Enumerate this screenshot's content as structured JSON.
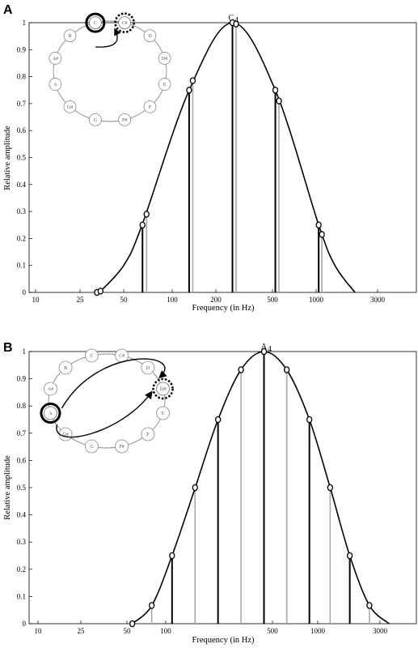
{
  "chart_data": [
    {
      "panel": "A",
      "type": "line",
      "peak_label": "C",
      "peak_label_sub": "4",
      "xlabel": "Frequency (in Hz)",
      "ylabel": "Relative amplitude",
      "x_scale": "log",
      "xlim": [
        8,
        5000
      ],
      "ylim": [
        0,
        1
      ],
      "x_ticks": [
        10,
        25,
        50,
        100,
        200,
        500,
        1000,
        3000
      ],
      "x_tick_labels": [
        "10",
        "25",
        "50",
        "100",
        "200",
        "500",
        "1000",
        "3000"
      ],
      "y_ticks": [
        0,
        0.1,
        0.2,
        0.3,
        0.4,
        0.5,
        0.6,
        0.7,
        0.8,
        0.9,
        1
      ],
      "y_tick_labels": [
        "0",
        "0.1",
        "0.2",
        "0.3",
        "0.4",
        "0.5",
        "0.6",
        "0.7",
        "0.8",
        "0.9",
        "1"
      ],
      "envelope_center_hz": 262,
      "envelope_points": [
        [
          34,
          0
        ],
        [
          50,
          0.1
        ],
        [
          65,
          0.25
        ],
        [
          131,
          0.75
        ],
        [
          262,
          1
        ],
        [
          523,
          0.75
        ],
        [
          1047,
          0.25
        ],
        [
          1400,
          0.1
        ],
        [
          2000,
          0
        ]
      ],
      "series": [
        {
          "name": "C",
          "color": "#000000",
          "x": [
            32.7,
            65.4,
            130.8,
            261.6,
            523.3,
            1046.5
          ],
          "y": [
            0,
            0.25,
            0.75,
            1,
            0.75,
            0.25
          ]
        },
        {
          "name": "C#",
          "color": "#aaaaaa",
          "x": [
            34.6,
            69.3,
            138.6,
            277.2,
            554.4,
            1108.7
          ],
          "y": [
            0.005,
            0.29,
            0.785,
            0.995,
            0.71,
            0.215
          ]
        }
      ],
      "circle": {
        "notes": [
          "C",
          "C#",
          "D",
          "D#",
          "E",
          "F",
          "F#",
          "G",
          "G#",
          "A",
          "A#",
          "B"
        ],
        "source_note": "C",
        "target_note": "C#"
      }
    },
    {
      "panel": "B",
      "type": "line",
      "peak_label": "A",
      "peak_label_sub": "4",
      "xlabel": "Frequency (in Hz)",
      "ylabel": "Relative amplitude",
      "x_scale": "log",
      "xlim": [
        8,
        5000
      ],
      "ylim": [
        0,
        1
      ],
      "x_ticks": [
        10,
        25,
        50,
        100,
        500,
        1000,
        3000
      ],
      "x_tick_labels": [
        "10",
        "25",
        "50",
        "100",
        "500",
        "1000",
        "3000"
      ],
      "y_ticks": [
        0,
        0.1,
        0.2,
        0.3,
        0.4,
        0.5,
        0.6,
        0.7,
        0.8,
        0.9,
        1
      ],
      "y_tick_labels": [
        "0",
        "0.1",
        "0.2",
        "0.3",
        "0.4",
        "0.5",
        "0.6",
        "0.7",
        "0.8",
        "0.9",
        "1"
      ],
      "envelope_center_hz": 440,
      "envelope_points": [
        [
          55,
          0
        ],
        [
          78,
          0.067
        ],
        [
          110,
          0.25
        ],
        [
          156,
          0.5
        ],
        [
          220,
          0.75
        ],
        [
          311,
          0.933
        ],
        [
          440,
          1
        ],
        [
          622,
          0.933
        ],
        [
          880,
          0.75
        ],
        [
          1245,
          0.5
        ],
        [
          1760,
          0.25
        ],
        [
          2490,
          0.067
        ],
        [
          3520,
          0
        ]
      ],
      "series": [
        {
          "name": "A",
          "color": "#000000",
          "x": [
            55,
            110,
            220,
            440,
            880,
            1760
          ],
          "y": [
            0,
            0.25,
            0.75,
            1,
            0.75,
            0.25
          ]
        },
        {
          "name": "D#",
          "color": "#aaaaaa",
          "x": [
            77.8,
            155.6,
            311.1,
            622.3,
            1244.5,
            2489
          ],
          "y": [
            0.067,
            0.5,
            0.933,
            0.933,
            0.5,
            0.067
          ]
        }
      ],
      "circle": {
        "notes": [
          "C",
          "C#",
          "D",
          "D#",
          "E",
          "F",
          "F#",
          "G",
          "G#",
          "A",
          "A#",
          "B"
        ],
        "source_note": "A",
        "target_note": "D#"
      }
    }
  ]
}
